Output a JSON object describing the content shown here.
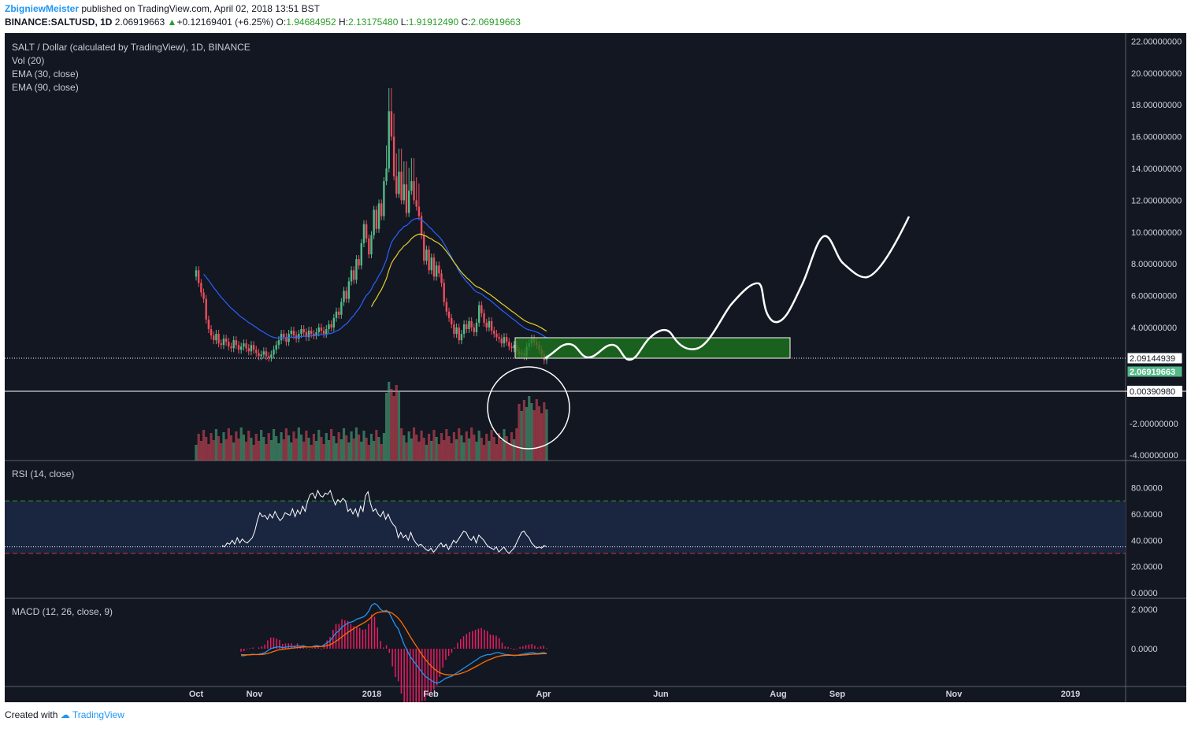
{
  "header": {
    "author": "ZbigniewMeister",
    "published_text": "published on TradingView.com, April 02, 2018 13:51 BST",
    "symbol": "BINANCE:SALTUSD, 1D",
    "last": "2.06919663",
    "change": "+0.12169401 (+6.25%)",
    "o_label": "O:",
    "o_value": "1.94684952",
    "h_label": "H:",
    "h_value": "2.13175480",
    "l_label": "L:",
    "l_value": "1.91912490",
    "c_label": "C:",
    "c_value": "2.06919663"
  },
  "legend": {
    "main": "SALT / Dollar (calculated by TradingView), 1D, BINANCE",
    "vol": "Vol (20)",
    "ema30": "EMA (30, close)",
    "ema90": "EMA (90, close)",
    "rsi": "RSI (14, close)",
    "macd": "MACD (12, 26, close, 9)"
  },
  "footer": {
    "created_with": "Created with",
    "brand": "TradingView"
  },
  "colors": {
    "background": "#131722",
    "up": "#53b987",
    "down": "#eb4d5c",
    "ema30": "#2962ff",
    "ema90": "#e6d02a",
    "zone": "#1e7a1e",
    "rsi_band": "#1a2540",
    "macd_line": "#2196f3",
    "signal_line": "#ff6d00",
    "hist": "#e91e63",
    "last_label": "#53b987"
  },
  "chart_data": {
    "type": "candlestick",
    "main_axis": {
      "ticks": [
        "22.00000000",
        "20.00000000",
        "18.00000000",
        "16.00000000",
        "14.00000000",
        "12.00000000",
        "10.00000000",
        "8.00000000",
        "6.00000000",
        "4.00000000"
      ],
      "tick_values": [
        22,
        20,
        18,
        16,
        14,
        12,
        10,
        8,
        6,
        4
      ],
      "labels": [
        {
          "text": "2.09144939",
          "value": 2.09144939,
          "style": "outline"
        },
        {
          "text": "2.06919663",
          "value": 2.06919663,
          "style": "last"
        }
      ]
    },
    "volume_axis": {
      "ticks": [
        "0.00390980",
        "-2.00000000",
        "-4.00000000"
      ],
      "tick_values": [
        0.0039098,
        -2,
        -4
      ]
    },
    "rsi": {
      "ticks": [
        "80.0000",
        "60.0000",
        "40.0000",
        "20.0000",
        "0.0000"
      ],
      "tick_values": [
        80,
        60,
        40,
        20,
        0
      ],
      "upper": 70,
      "lower": 30,
      "current": 35,
      "values": [
        36,
        35,
        38,
        37,
        40,
        37,
        42,
        38,
        41,
        39,
        38,
        40,
        42,
        47,
        55,
        61,
        58,
        59,
        56,
        60,
        57,
        62,
        58,
        55,
        57,
        61,
        60,
        59,
        64,
        58,
        63,
        60,
        66,
        62,
        70,
        75,
        76,
        72,
        78,
        74,
        73,
        76,
        75,
        78,
        72,
        67,
        71,
        69,
        72,
        70,
        62,
        64,
        60,
        64,
        58,
        66,
        62,
        74,
        77,
        68,
        62,
        64,
        60,
        58,
        62,
        56,
        60,
        55,
        52,
        50,
        42,
        46,
        42,
        44,
        40,
        46,
        41,
        38,
        36,
        37,
        35,
        33,
        32,
        34,
        31,
        33,
        36,
        38,
        35,
        37,
        33,
        36,
        40,
        38,
        41,
        44,
        47,
        46,
        42,
        40,
        43,
        38,
        44,
        42,
        40,
        37,
        35,
        34,
        33,
        35,
        31,
        33,
        35,
        32,
        30,
        32,
        34,
        38,
        42,
        46,
        47,
        44,
        42,
        38,
        36,
        34,
        35,
        34,
        36,
        35
      ]
    },
    "macd": {
      "ticks": [
        "2.0000",
        "0.0000"
      ],
      "tick_values": [
        2,
        0
      ],
      "macd": [
        -0.35,
        -0.35,
        -0.32,
        -0.3,
        -0.28,
        -0.3,
        -0.28,
        -0.25,
        -0.2,
        -0.1,
        0,
        0.05,
        0.08,
        0.1,
        0.05,
        0.08,
        0.1,
        0.12,
        0.1,
        0.15,
        0.12,
        0.15,
        0.1,
        0.08,
        0.1,
        0.15,
        0.15,
        0.1,
        0.2,
        0.3,
        0.4,
        0.6,
        0.8,
        0.9,
        1.1,
        1.2,
        1.3,
        1.35,
        1.4,
        1.5,
        1.55,
        1.6,
        1.7,
        1.9,
        2.2,
        2.3,
        2.2,
        2.0,
        1.9,
        1.95,
        1.8,
        1.5,
        1.2,
        1.0,
        0.6,
        0.2,
        -0.1,
        -0.4,
        -0.6,
        -0.8,
        -1,
        -1.2,
        -1.4,
        -1.5,
        -1.6,
        -1.7,
        -1.75,
        -1.7,
        -1.6,
        -1.5,
        -1.45,
        -1.4,
        -1.3,
        -1.2,
        -1.1,
        -1.0,
        -0.9,
        -0.8,
        -0.7,
        -0.6,
        -0.5,
        -0.4,
        -0.35,
        -0.3,
        -0.3,
        -0.25,
        -0.2,
        -0.2,
        -0.25,
        -0.3,
        -0.3,
        -0.32,
        -0.35,
        -0.34,
        -0.3,
        -0.28,
        -0.25,
        -0.22,
        -0.2,
        -0.22,
        -0.25,
        -0.22,
        -0.2,
        -0.24
      ],
      "signal": [
        -0.3,
        -0.31,
        -0.31,
        -0.31,
        -0.3,
        -0.3,
        -0.3,
        -0.29,
        -0.27,
        -0.24,
        -0.19,
        -0.14,
        -0.09,
        -0.05,
        -0.03,
        -0.01,
        0.01,
        0.03,
        0.04,
        0.06,
        0.07,
        0.09,
        0.09,
        0.09,
        0.09,
        0.1,
        0.11,
        0.11,
        0.13,
        0.16,
        0.2,
        0.28,
        0.38,
        0.48,
        0.6,
        0.72,
        0.83,
        0.93,
        1.02,
        1.12,
        1.2,
        1.28,
        1.37,
        1.48,
        1.62,
        1.76,
        1.84,
        1.87,
        1.88,
        1.89,
        1.87,
        1.8,
        1.68,
        1.55,
        1.36,
        1.13,
        0.88,
        0.62,
        0.38,
        0.15,
        -0.08,
        -0.31,
        -0.52,
        -0.7,
        -0.87,
        -1.01,
        -1.13,
        -1.22,
        -1.28,
        -1.31,
        -1.33,
        -1.33,
        -1.32,
        -1.3,
        -1.26,
        -1.21,
        -1.15,
        -1.08,
        -1.0,
        -0.92,
        -0.84,
        -0.75,
        -0.67,
        -0.6,
        -0.54,
        -0.48,
        -0.42,
        -0.38,
        -0.35,
        -0.34,
        -0.33,
        -0.33,
        -0.33,
        -0.33,
        -0.33,
        -0.32,
        -0.31,
        -0.29,
        -0.28,
        -0.27,
        -0.27,
        -0.26,
        -0.25,
        -0.25
      ]
    },
    "x_axis": {
      "ticks": [
        "Oct",
        "Nov",
        "2018",
        "Feb",
        "Apr",
        "Jun",
        "Aug",
        "Sep",
        "Nov",
        "2019"
      ]
    }
  }
}
